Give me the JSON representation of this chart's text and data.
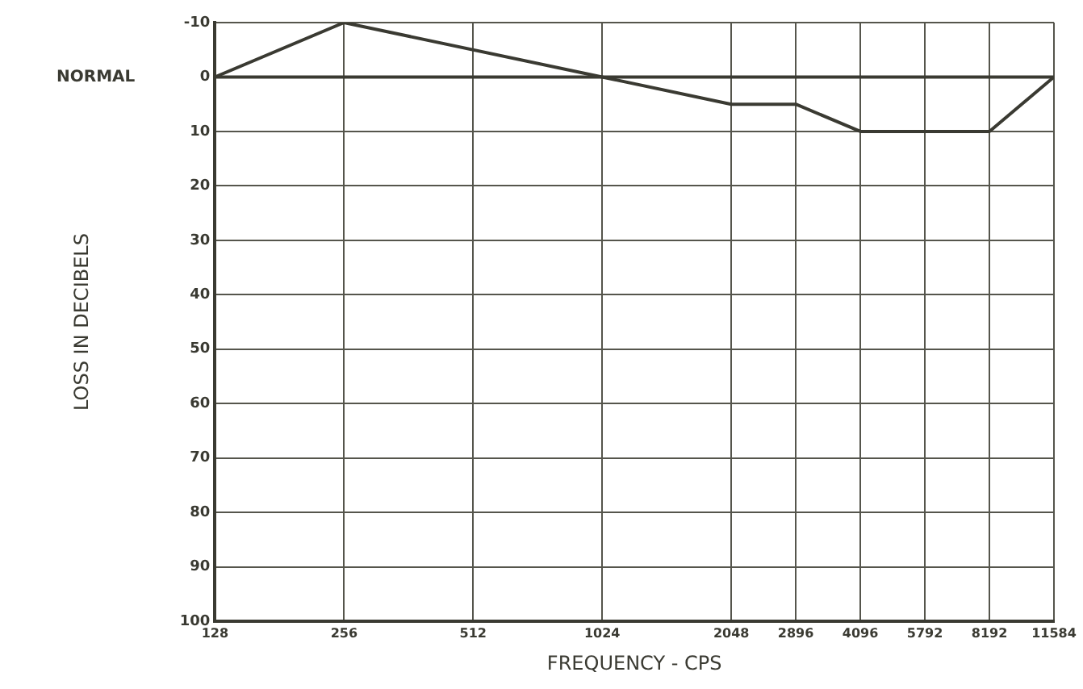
{
  "chart_data": {
    "type": "line",
    "xlabel": "FREQUENCY - CPS",
    "ylabel": "LOSS IN DECIBELS",
    "x": [
      128,
      256,
      1024,
      2048,
      2896,
      4096,
      8192,
      11584
    ],
    "series": [
      {
        "color": "#3a3a32",
        "values": [
          0,
          -10,
          0,
          5,
          5,
          10,
          10,
          0
        ]
      }
    ],
    "log": "x",
    "xlim": [
      128,
      11584
    ],
    "xticks": [
      128,
      256,
      512,
      1024,
      2048,
      2896,
      4096,
      5792,
      8192,
      11584
    ],
    "ylim": [
      100,
      -10
    ],
    "yticks": [
      -10,
      0,
      10,
      20,
      30,
      40,
      50,
      60,
      70,
      80,
      90,
      100
    ],
    "grid": true,
    "legend": false,
    "marker": "none",
    "line_style": "solid",
    "ref_lines": [
      {
        "axis": "y",
        "value": 0,
        "label": "NORMAL",
        "color": "#3a3a32"
      }
    ]
  }
}
